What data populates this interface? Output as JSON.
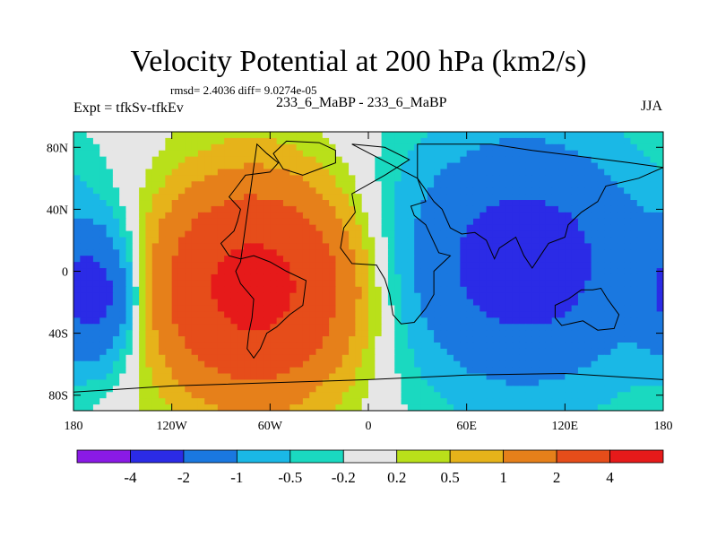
{
  "chart_data": {
    "type": "heatmap",
    "title": "Velocity Potential at 200 hPa (km2/s)",
    "stats_text": "rmsd= 2.4036 diff= 9.0274e-05",
    "left_label": "Expt = tfkSv-tfkEv",
    "center_label": "233_6_MaBP - 233_6_MaBP",
    "right_label": "JJA",
    "xlim": [
      -180,
      180
    ],
    "ylim": [
      -90,
      90
    ],
    "x_ticks": [
      {
        "value": -180,
        "label": "180"
      },
      {
        "value": -120,
        "label": "120W"
      },
      {
        "value": -60,
        "label": "60W"
      },
      {
        "value": 0,
        "label": "0"
      },
      {
        "value": 60,
        "label": "60E"
      },
      {
        "value": 120,
        "label": "120E"
      },
      {
        "value": 180,
        "label": "180"
      }
    ],
    "y_ticks": [
      {
        "value": 80,
        "label": "80N"
      },
      {
        "value": 40,
        "label": "40N"
      },
      {
        "value": 0,
        "label": "0"
      },
      {
        "value": -40,
        "label": "40S"
      },
      {
        "value": -80,
        "label": "80S"
      }
    ],
    "levels": [
      "-4",
      "-2",
      "-1",
      "-0.5",
      "-0.2",
      "0.2",
      "0.5",
      "1",
      "2",
      "4"
    ],
    "colors": [
      "#8a1ae6",
      "#2b2be6",
      "#1a78e0",
      "#1ab8e6",
      "#1ad9c0",
      "#e6e6e6",
      "#b9e01a",
      "#e6b31a",
      "#e6801a",
      "#e64d1a",
      "#e61a1a"
    ],
    "field": {
      "description_values": "centres of anomaly in data units (lon, lat, amplitude km2/s)",
      "centers": [
        {
          "lon": -70,
          "lat": -10,
          "amp": 5.2,
          "sx": 42,
          "sy": 45
        },
        {
          "lon": 95,
          "lat": 5,
          "amp": -3.0,
          "sx": 55,
          "sy": 55
        },
        {
          "lon": -165,
          "lat": -15,
          "amp": -2.3,
          "sx": 18,
          "sy": 30
        }
      ]
    }
  },
  "colors": {
    "coast": "#000000",
    "frame": "#000000"
  }
}
